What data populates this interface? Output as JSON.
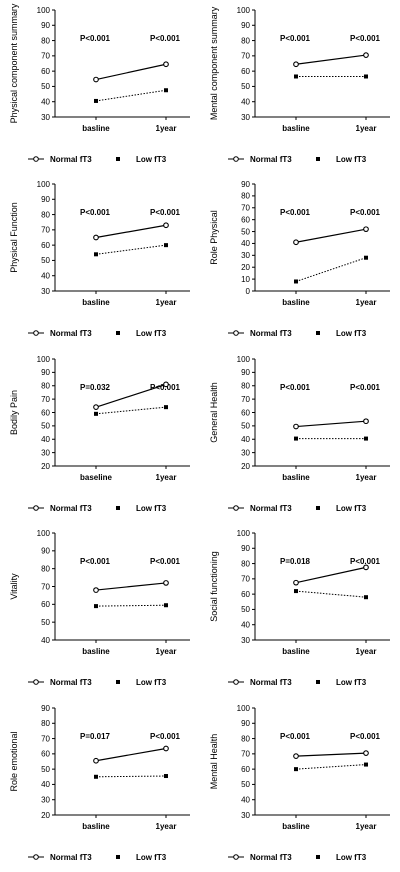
{
  "legend": {
    "normal_label": "Normal fT3",
    "low_label": "Low fT3"
  },
  "colors": {
    "line": "#000000",
    "background": "#ffffff"
  },
  "chart_data": [
    {
      "type": "line",
      "ylabel": "Physical component summary",
      "categories": [
        "basline",
        "1year"
      ],
      "ylim": [
        30,
        100
      ],
      "yticks": [
        30,
        40,
        50,
        60,
        70,
        80,
        90,
        100
      ],
      "pvalues": [
        "P<0.001",
        "P<0.001"
      ],
      "series": [
        {
          "name": "Normal fT3",
          "values": [
            54.5,
            64.5
          ]
        },
        {
          "name": "Low fT3",
          "values": [
            40.5,
            47.5
          ]
        }
      ]
    },
    {
      "type": "line",
      "ylabel": "Mental component summary",
      "categories": [
        "basline",
        "1year"
      ],
      "ylim": [
        30,
        100
      ],
      "yticks": [
        30,
        40,
        50,
        60,
        70,
        80,
        90,
        100
      ],
      "pvalues": [
        "P<0.001",
        "P<0.001"
      ],
      "series": [
        {
          "name": "Normal fT3",
          "values": [
            64.5,
            70.5
          ]
        },
        {
          "name": "Low fT3",
          "values": [
            56.5,
            56.5
          ]
        }
      ]
    },
    {
      "type": "line",
      "ylabel": "Physical Function",
      "categories": [
        "basline",
        "1year"
      ],
      "ylim": [
        30,
        100
      ],
      "yticks": [
        30,
        40,
        50,
        60,
        70,
        80,
        90,
        100
      ],
      "pvalues": [
        "P<0.001",
        "P<0.001"
      ],
      "series": [
        {
          "name": "Normal fT3",
          "values": [
            65,
            73
          ]
        },
        {
          "name": "Low fT3",
          "values": [
            54,
            60
          ]
        }
      ]
    },
    {
      "type": "line",
      "ylabel": "Role Physical",
      "categories": [
        "basline",
        "1year"
      ],
      "ylim": [
        0,
        90
      ],
      "yticks": [
        0,
        10,
        20,
        30,
        40,
        50,
        60,
        70,
        80,
        90
      ],
      "pvalues": [
        "P<0.001",
        "P<0.001"
      ],
      "series": [
        {
          "name": "Normal fT3",
          "values": [
            41,
            52
          ]
        },
        {
          "name": "Low fT3",
          "values": [
            8,
            28
          ]
        }
      ]
    },
    {
      "type": "line",
      "ylabel": "Bodily Pain",
      "categories": [
        "baseline",
        "1year"
      ],
      "ylim": [
        20,
        100
      ],
      "yticks": [
        20,
        30,
        40,
        50,
        60,
        70,
        80,
        90,
        100
      ],
      "pvalues": [
        "P=0.032",
        "P<0.001"
      ],
      "series": [
        {
          "name": "Normal fT3",
          "values": [
            64,
            81
          ]
        },
        {
          "name": "Low fT3",
          "values": [
            59,
            64
          ]
        }
      ]
    },
    {
      "type": "line",
      "ylabel": "General Health",
      "categories": [
        "basline",
        "1year"
      ],
      "ylim": [
        20,
        100
      ],
      "yticks": [
        20,
        30,
        40,
        50,
        60,
        70,
        80,
        90,
        100
      ],
      "pvalues": [
        "P<0.001",
        "P<0.001"
      ],
      "series": [
        {
          "name": "Normal fT3",
          "values": [
            49.5,
            53.5
          ]
        },
        {
          "name": "Low fT3",
          "values": [
            40.5,
            40.5
          ]
        }
      ]
    },
    {
      "type": "line",
      "ylabel": "Vitality",
      "categories": [
        "basline",
        "1year"
      ],
      "ylim": [
        40,
        100
      ],
      "yticks": [
        40,
        50,
        60,
        70,
        80,
        90,
        100
      ],
      "pvalues": [
        "P<0.001",
        "P<0.001"
      ],
      "series": [
        {
          "name": "Normal fT3",
          "values": [
            68,
            72
          ]
        },
        {
          "name": "Low fT3",
          "values": [
            59,
            59.5
          ]
        }
      ]
    },
    {
      "type": "line",
      "ylabel": "Social functioning",
      "categories": [
        "basline",
        "1year"
      ],
      "ylim": [
        30,
        100
      ],
      "yticks": [
        30,
        40,
        50,
        60,
        70,
        80,
        90,
        100
      ],
      "pvalues": [
        "P=0.018",
        "P<0.001"
      ],
      "series": [
        {
          "name": "Normal fT3",
          "values": [
            67.5,
            77.5
          ]
        },
        {
          "name": "Low fT3",
          "values": [
            62,
            58
          ]
        }
      ]
    },
    {
      "type": "line",
      "ylabel": "Role emotional",
      "categories": [
        "basline",
        "1year"
      ],
      "ylim": [
        20,
        90
      ],
      "yticks": [
        20,
        30,
        40,
        50,
        60,
        70,
        80,
        90
      ],
      "pvalues": [
        "P=0.017",
        "P<0.001"
      ],
      "series": [
        {
          "name": "Normal fT3",
          "values": [
            55.5,
            63.5
          ]
        },
        {
          "name": "Low fT3",
          "values": [
            45,
            45.5
          ]
        }
      ]
    },
    {
      "type": "line",
      "ylabel": "Mental Health",
      "categories": [
        "basline",
        "1year"
      ],
      "ylim": [
        30,
        100
      ],
      "yticks": [
        30,
        40,
        50,
        60,
        70,
        80,
        90,
        100
      ],
      "pvalues": [
        "P<0.001",
        "P<0.001"
      ],
      "series": [
        {
          "name": "Normal fT3",
          "values": [
            68.5,
            70.5
          ]
        },
        {
          "name": "Low fT3",
          "values": [
            60,
            63
          ]
        }
      ]
    }
  ]
}
